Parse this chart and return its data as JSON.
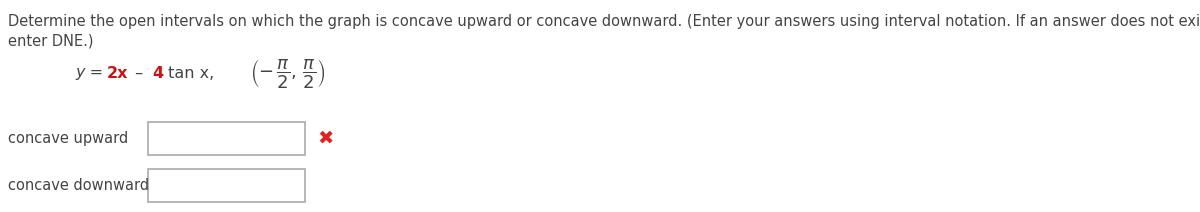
{
  "background_color": "#ffffff",
  "instruction_line1": "Determine the open intervals on which the graph is concave upward or concave downward. (Enter your answers using interval notation. If an answer does not exist,",
  "instruction_line2": "enter DNE.)",
  "text_color": "#444444",
  "eq_color_normal": "#444444",
  "eq_color_red": "#cc1111",
  "label_concave_up": "concave upward",
  "label_concave_down": "concave downward",
  "x_mark_color": "#dd2222",
  "box_edge_color": "#aaaaaa",
  "font_size_instr": 10.5,
  "font_size_eq": 11.5,
  "font_size_label": 10.5,
  "font_size_xmark": 14,
  "font_size_interval": 13
}
